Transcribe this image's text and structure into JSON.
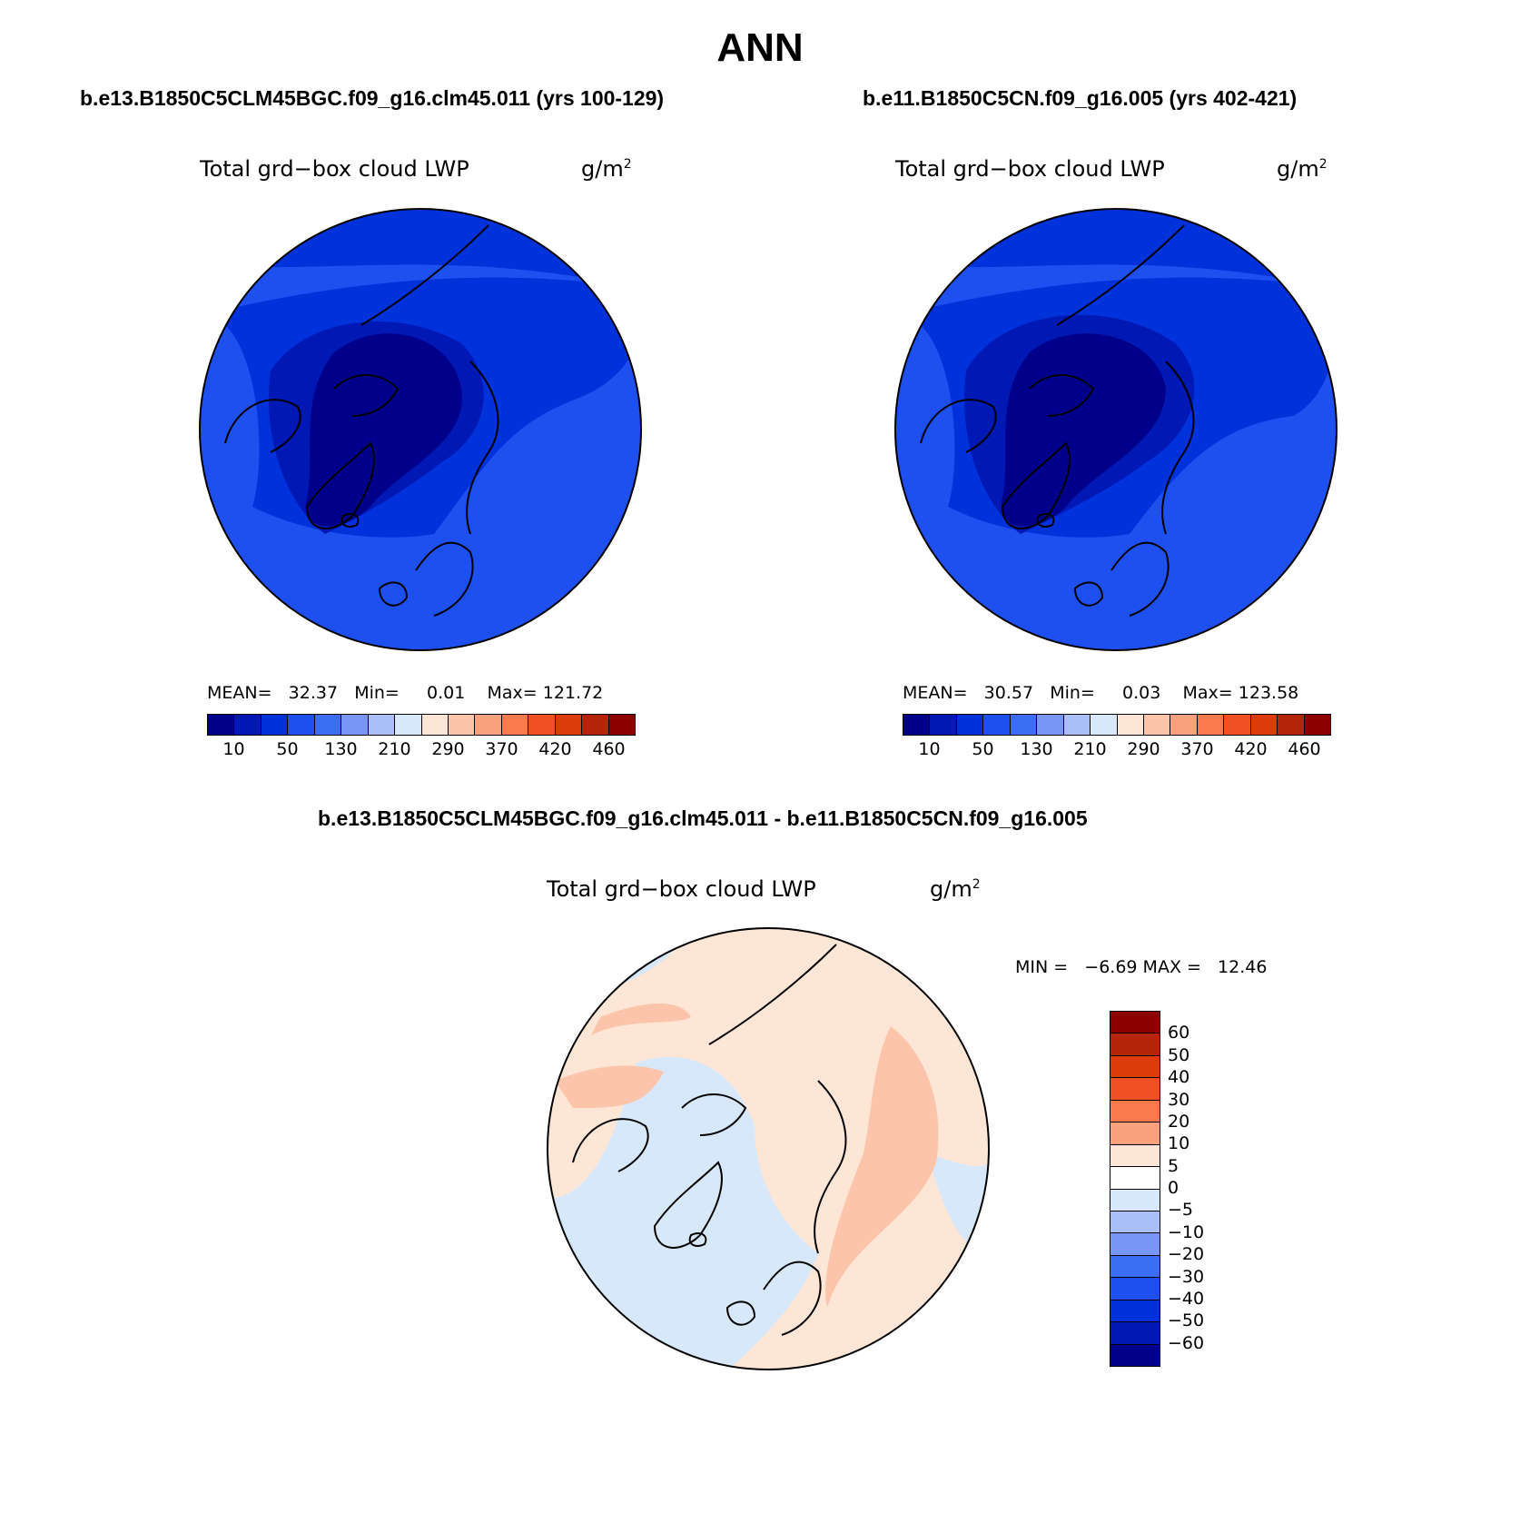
{
  "title": "ANN",
  "panels": [
    {
      "case": "b.e13.B1850C5CLM45BGC.f09_g16.clm45.011 (yrs 100-129)",
      "field": "Total grd−box cloud LWP",
      "unit_base": "g/m",
      "unit_exp": "2",
      "stats": {
        "mean_label": "MEAN=",
        "mean": "32.37",
        "min_label": "Min=",
        "min": "0.01",
        "max_label": "Max=",
        "max": "121.72"
      }
    },
    {
      "case": "b.e11.B1850C5CN.f09_g16.005 (yrs 402-421)",
      "field": "Total grd−box cloud LWP",
      "unit_base": "g/m",
      "unit_exp": "2",
      "stats": {
        "mean_label": "MEAN=",
        "mean": "30.57",
        "min_label": "Min=",
        "min": "0.03",
        "max_label": "Max=",
        "max": "123.58"
      }
    }
  ],
  "colorbar": {
    "colors": [
      "#00008b",
      "#0018b4",
      "#0032dc",
      "#1e50f0",
      "#3c6ef5",
      "#7896f5",
      "#aabef8",
      "#d7e8fb",
      "#fde6d6",
      "#fcc5ab",
      "#fca17d",
      "#fa7a4d",
      "#f05023",
      "#dc3c0a",
      "#b42408",
      "#8c0000"
    ],
    "tick_labels": [
      "10",
      "50",
      "130",
      "210",
      "290",
      "370",
      "420",
      "460"
    ]
  },
  "diff": {
    "case": "b.e13.B1850C5CLM45BGC.f09_g16.clm45.011 - b.e11.B1850C5CN.f09_g16.005",
    "field": "Total grd−box cloud LWP",
    "unit_base": "g/m",
    "unit_exp": "2",
    "minmax": "MIN =   −6.69 MAX =   12.46",
    "colors": [
      "#8c0000",
      "#b42408",
      "#dc3c0a",
      "#f05023",
      "#fa7a4d",
      "#fca17d",
      "#fde6d6",
      "#ffffff",
      "#d7e8fb",
      "#aabef8",
      "#7896f5",
      "#3c6ef5",
      "#1e50f0",
      "#0032dc",
      "#0018b4",
      "#00008b"
    ],
    "tick_labels": [
      "60",
      "50",
      "40",
      "30",
      "20",
      "10",
      "5",
      "0",
      "−5",
      "−10",
      "−20",
      "−30",
      "−40",
      "−50",
      "−60"
    ]
  },
  "map_fills": {
    "outer": "#1e50f0",
    "mid": "#0032dc",
    "inner": "#0018b4",
    "core": "#00008b",
    "diff_base": "#fde6d6",
    "diff_neg": "#d7e8fb",
    "diff_pos": "#fcc5ab"
  }
}
